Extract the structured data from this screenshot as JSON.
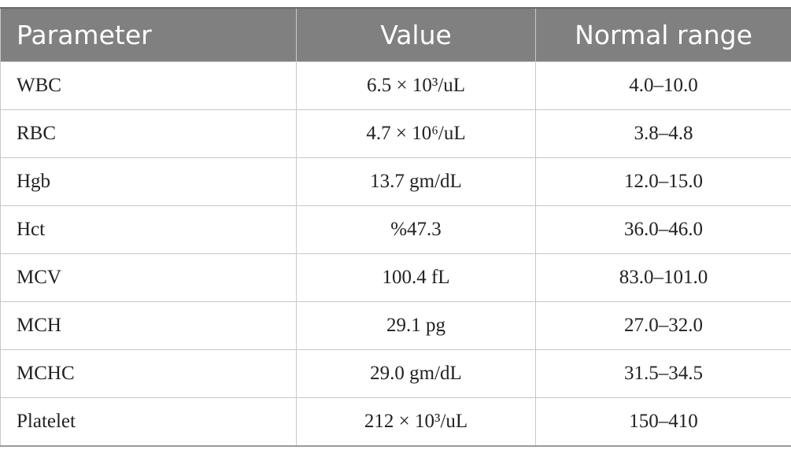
{
  "table": {
    "headers": [
      "Parameter",
      "Value",
      "Normal range"
    ],
    "rows": [
      [
        "WBC",
        "6.5 × 10³/uL",
        "4.0–10.0"
      ],
      [
        "RBC",
        "4.7 × 10⁶/uL",
        "3.8–4.8"
      ],
      [
        "Hgb",
        "13.7 gm/dL",
        "12.0–15.0"
      ],
      [
        "Hct",
        "%47.3",
        "36.0–46.0"
      ],
      [
        "MCV",
        "100.4 fL",
        "83.0–101.0"
      ],
      [
        "MCH",
        "29.1 pg",
        "27.0–32.0"
      ],
      [
        "MCHC",
        "29.0 gm/dL",
        "31.5–34.5"
      ],
      [
        "Platelet",
        "212 × 10³/uL",
        "150–410"
      ]
    ]
  }
}
